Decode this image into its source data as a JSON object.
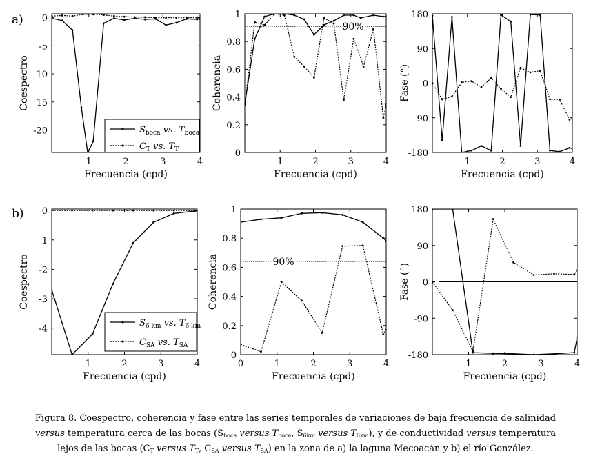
{
  "figure": {
    "row_labels": [
      "a)",
      "b)"
    ],
    "legend_a": [
      {
        "sym": "S",
        "sub": "boca",
        "vs": "vs.",
        "sym2": "T",
        "sub2": "boca"
      },
      {
        "sym": "C",
        "sub": "T",
        "vs": "vs.",
        "sym2": "T",
        "sub2": "T"
      }
    ],
    "legend_b": [
      {
        "sym": "S",
        "sub": "6 km",
        "vs": "vs.",
        "sym2": "T",
        "sub2": "6 km"
      },
      {
        "sym": "C",
        "sub": "SA",
        "vs": "vs.",
        "sym2": "T",
        "sub2": "SA"
      }
    ]
  },
  "caption": {
    "line1": "Figura 8. Coespectro, coherencia y fase entre las series temporales de variaciones de baja frecuencia de salinidad",
    "l2_a": "versus",
    "l2_b": " temperatura cerca de las bocas (S",
    "l2_c": "boca",
    "l2_d": " versus ",
    "l2_e": "T",
    "l2_f": "boca",
    "l2_g": ", S",
    "l2_h": "6km",
    "l2_i": " versus ",
    "l2_j": "T",
    "l2_k": "6km",
    "l2_l": "), y de conductividad ",
    "l2_m": "versus",
    "l2_n": " temperatura",
    "l3_a": "lejos de las bocas (C",
    "l3_b": "T",
    "l3_c": " versus ",
    "l3_d": "T",
    "l3_e": "T",
    "l3_f": ", C",
    "l3_g": "SA",
    "l3_h": " versus ",
    "l3_i": "T",
    "l3_j": "SA",
    "l3_k": ") en la zona de a) la laguna Mecoacán y b) el río González."
  },
  "chart_data": [
    {
      "id": "a-coespectro",
      "type": "line",
      "row": "a",
      "xlabel": "Frecuencia (cpd)",
      "ylabel": "Coespectro",
      "xlim": [
        0,
        4
      ],
      "ylim": [
        -24,
        0.7
      ],
      "xticks": [
        1,
        2,
        3,
        4
      ],
      "yticks": [
        0,
        -5,
        -10,
        -15,
        -20
      ],
      "series": [
        {
          "name": "S_boca vs. T_boca",
          "style": "solid",
          "x": [
            0,
            0.28,
            0.56,
            0.8,
            0.97,
            1.12,
            1.4,
            1.68,
            1.96,
            2.24,
            2.52,
            2.8,
            3.08,
            3.36,
            3.64,
            3.92,
            4
          ],
          "y": [
            -0.1,
            -0.5,
            -2.2,
            -16,
            -24,
            -22,
            -1,
            -0.1,
            -0.4,
            -0.1,
            -0.3,
            -0.2,
            -1.3,
            -0.9,
            -0.2,
            -0.3,
            -0.2
          ]
        },
        {
          "name": "C_T vs. T_T",
          "style": "dotted",
          "x": [
            0,
            0.28,
            0.56,
            0.84,
            1.12,
            1.4,
            1.68,
            1.96,
            2.24,
            2.52,
            2.8,
            3.08,
            3.36,
            3.64,
            3.92,
            4
          ],
          "y": [
            0.3,
            0.4,
            0.3,
            0.6,
            0.6,
            0.5,
            0.3,
            0.2,
            0.1,
            0.1,
            0,
            0,
            0,
            0,
            0,
            0
          ]
        }
      ]
    },
    {
      "id": "a-coherencia",
      "type": "line",
      "row": "a",
      "xlabel": "Frecuencia (cpd)",
      "ylabel": "Coherencia",
      "xlim": [
        0,
        4
      ],
      "ylim": [
        0,
        1
      ],
      "xticks": [
        1,
        2,
        3,
        4
      ],
      "yticks": [
        0,
        0.2,
        0.4,
        0.6,
        0.8,
        1
      ],
      "ref_line": {
        "y": 0.91,
        "label": "90%"
      },
      "series": [
        {
          "name": "S_boca vs. T_boca",
          "style": "solid",
          "x": [
            0,
            0.28,
            0.56,
            0.84,
            1.12,
            1.4,
            1.68,
            1.96,
            2.24,
            2.52,
            2.8,
            3.08,
            3.28,
            3.64,
            3.92,
            4
          ],
          "y": [
            0.35,
            0.82,
            0.98,
            1.0,
            1.0,
            0.99,
            0.96,
            0.85,
            0.92,
            0.95,
            0.99,
            0.99,
            0.97,
            0.99,
            0.98,
            0.98
          ]
        },
        {
          "name": "C_T vs. T_T",
          "style": "dotted",
          "x": [
            0,
            0.28,
            0.56,
            0.84,
            1.12,
            1.4,
            1.68,
            1.96,
            2.24,
            2.52,
            2.8,
            3.08,
            3.36,
            3.64,
            3.92,
            4
          ],
          "y": [
            0.34,
            0.94,
            0.92,
            1.0,
            0.99,
            0.69,
            0.62,
            0.54,
            0.97,
            0.93,
            0.38,
            0.82,
            0.62,
            0.89,
            0.25,
            0.35
          ]
        }
      ]
    },
    {
      "id": "a-fase",
      "type": "line",
      "row": "a",
      "xlabel": "Frecuencia (cpd)",
      "ylabel": "Fase (°)",
      "xlim": [
        0,
        4
      ],
      "ylim": [
        -180,
        180
      ],
      "xticks": [
        1,
        2,
        3,
        4
      ],
      "yticks": [
        180,
        90,
        0,
        -90,
        -180
      ],
      "zero_line": 0,
      "series": [
        {
          "name": "S_boca vs. T_boca",
          "style": "solid",
          "x": [
            0,
            0.28,
            0.56,
            0.84,
            1.12,
            1.4,
            1.68,
            1.96,
            2.24,
            2.52,
            2.8,
            3.08,
            3.36,
            3.64,
            3.92,
            4
          ],
          "y": [
            175,
            -148,
            172,
            -180,
            -175,
            -163,
            -175,
            177,
            160,
            -163,
            178,
            177,
            -175,
            -178,
            -168,
            -170
          ]
        },
        {
          "name": "C_T vs. T_T",
          "style": "dotted",
          "x": [
            0,
            0.28,
            0.56,
            0.84,
            1.12,
            1.4,
            1.68,
            1.96,
            2.24,
            2.52,
            2.8,
            3.08,
            3.36,
            3.64,
            3.92,
            4
          ],
          "y": [
            0,
            -42,
            -35,
            2,
            5,
            -10,
            13,
            -15,
            -36,
            40,
            28,
            32,
            -42,
            -43,
            -95,
            -92
          ]
        }
      ]
    },
    {
      "id": "b-coespectro",
      "type": "line",
      "row": "b",
      "xlabel": "Frecuencia (cpd)",
      "ylabel": "Coespectro",
      "xlim": [
        0,
        4
      ],
      "ylim": [
        -4.9,
        0.05
      ],
      "xticks": [
        1,
        2,
        3,
        4
      ],
      "yticks": [
        0,
        -1,
        -2,
        -3,
        -4
      ],
      "series": [
        {
          "name": "S_6km vs. T_6km",
          "style": "solid",
          "x": [
            0,
            0.56,
            1.12,
            1.68,
            2.24,
            2.8,
            3.36,
            3.92,
            4
          ],
          "y": [
            -2.7,
            -4.9,
            -4.2,
            -2.5,
            -1.1,
            -0.4,
            -0.1,
            -0.02,
            -0.02
          ]
        },
        {
          "name": "C_SA vs. T_SA",
          "style": "dotted",
          "x": [
            0,
            0.56,
            1.12,
            1.68,
            2.24,
            2.8,
            3.36,
            3.92,
            4
          ],
          "y": [
            0,
            0,
            0,
            0,
            0,
            0,
            0,
            0,
            0
          ]
        }
      ]
    },
    {
      "id": "b-coherencia",
      "type": "line",
      "row": "b",
      "xlabel": "Frecuencia (cpd)",
      "ylabel": "Coherencia",
      "xlim": [
        0,
        4
      ],
      "ylim": [
        0,
        1
      ],
      "xticks": [
        0,
        1,
        2,
        3,
        4
      ],
      "yticks": [
        0,
        0.2,
        0.4,
        0.6,
        0.8,
        1
      ],
      "ref_line": {
        "y": 0.64,
        "label": "90%"
      },
      "series": [
        {
          "name": "S_6km vs. T_6km",
          "style": "solid",
          "x": [
            0,
            0.56,
            1.12,
            1.68,
            2.24,
            2.8,
            3.36,
            3.92,
            4
          ],
          "y": [
            0.91,
            0.93,
            0.94,
            0.97,
            0.975,
            0.96,
            0.91,
            0.8,
            0.78
          ]
        },
        {
          "name": "C_SA vs. T_SA",
          "style": "dotted",
          "x": [
            0,
            0.56,
            1.12,
            1.68,
            2.24,
            2.8,
            3.36,
            3.92,
            4
          ],
          "y": [
            0.07,
            0.02,
            0.5,
            0.37,
            0.15,
            0.745,
            0.75,
            0.14,
            0.17
          ]
        }
      ]
    },
    {
      "id": "b-fase",
      "type": "line",
      "row": "b",
      "xlabel": "Frecuencia (cpd)",
      "ylabel": "Fase (°)",
      "xlim": [
        0,
        4
      ],
      "ylim": [
        -180,
        180
      ],
      "xticks": [
        1,
        2,
        3,
        4
      ],
      "yticks": [
        180,
        90,
        0,
        -90,
        -180
      ],
      "zero_line": 0,
      "series": [
        {
          "name": "S_6km vs. T_6km",
          "style": "solid",
          "x": [
            0,
            0.56,
            1.12,
            1.68,
            2.24,
            2.8,
            3.36,
            3.92,
            4
          ],
          "y": [
            180,
            180,
            -175,
            -177,
            -178,
            -180,
            -178,
            -175,
            -138
          ]
        },
        {
          "name": "C_SA vs. T_SA",
          "style": "dotted",
          "x": [
            0,
            0.56,
            1.12,
            1.68,
            2.24,
            2.8,
            3.36,
            3.92,
            4
          ],
          "y": [
            0,
            -70,
            -172,
            155,
            48,
            17,
            20,
            18,
            30
          ]
        }
      ]
    }
  ]
}
